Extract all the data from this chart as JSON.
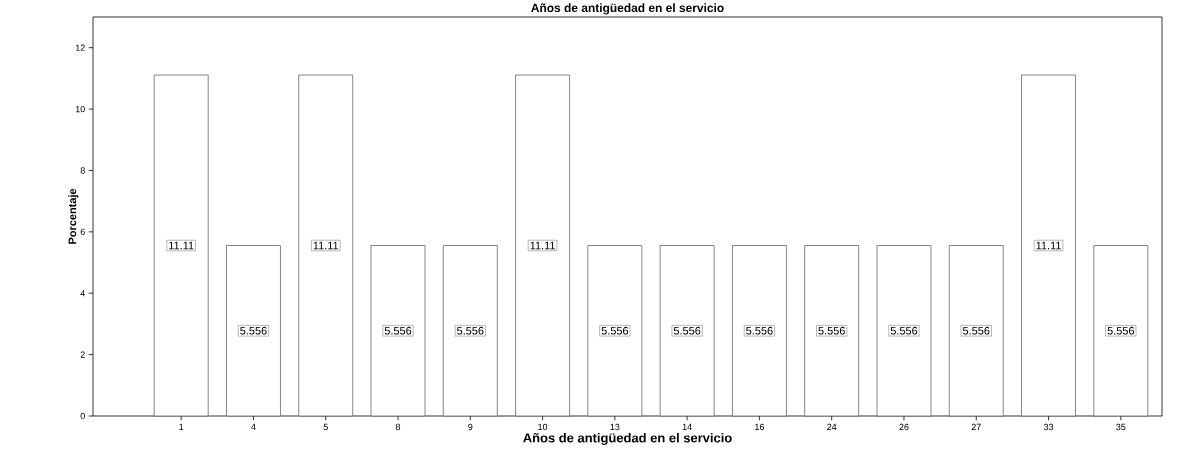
{
  "chart_data": {
    "type": "bar",
    "title": "Años de antigüedad en el servicio",
    "xlabel": "Años de antigüedad en el servicio",
    "ylabel": "Porcentaje",
    "categories": [
      "1",
      "4",
      "5",
      "8",
      "9",
      "10",
      "13",
      "14",
      "16",
      "24",
      "26",
      "27",
      "33",
      "35"
    ],
    "values": [
      11.11,
      5.556,
      11.11,
      5.556,
      5.556,
      11.11,
      5.556,
      5.556,
      5.556,
      5.556,
      5.556,
      5.556,
      11.11,
      5.556
    ],
    "color": "#ffffff",
    "ylim": [
      0,
      13
    ],
    "yticks": [
      0,
      2,
      4,
      6,
      8,
      10,
      12
    ],
    "data_labels": true,
    "grid": false
  }
}
